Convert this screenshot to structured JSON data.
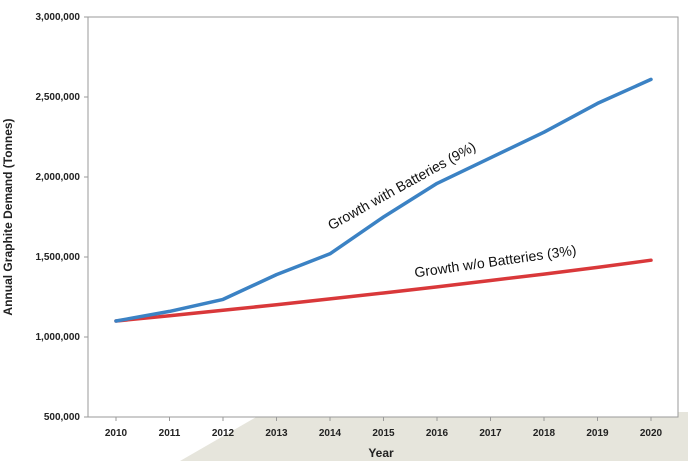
{
  "chart_data": {
    "type": "line",
    "xlabel": "Year",
    "ylabel": "Annual Graphite Demand (Tonnes)",
    "x": [
      2010,
      2011,
      2012,
      2013,
      2014,
      2015,
      2016,
      2017,
      2018,
      2019,
      2020
    ],
    "ylim": [
      500000,
      3000000
    ],
    "y_ticks": [
      "500,000",
      "1,000,000",
      "1,500,000",
      "2,000,000",
      "2,500,000",
      "3,000,000"
    ],
    "grid": false,
    "series": [
      {
        "name": "Growth with Batteries (9%)",
        "color": "#3b82c4",
        "values": [
          1100000,
          1160000,
          1235000,
          1390000,
          1520000,
          1750000,
          1960000,
          2120000,
          2280000,
          2460000,
          2610000
        ]
      },
      {
        "name": "Growth w/o Batteries (3%)",
        "color": "#d9383a",
        "values": [
          1100000,
          1133000,
          1167000,
          1202000,
          1238000,
          1275000,
          1313000,
          1353000,
          1393000,
          1435000,
          1480000
        ]
      }
    ]
  }
}
